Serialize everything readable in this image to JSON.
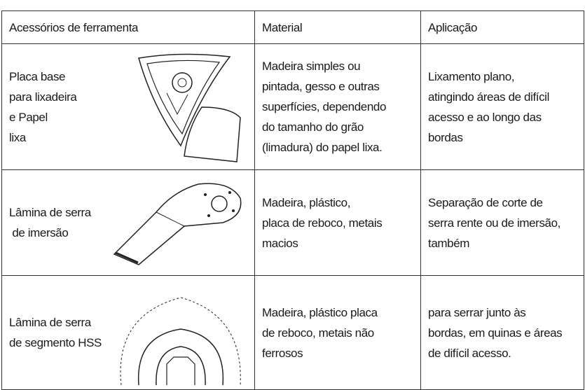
{
  "table": {
    "header": [
      "Acessórios de ferramenta",
      "Material",
      "Aplicação"
    ],
    "rows": [
      [
        [
          "Placa base",
          "para lixadeira",
          "e Papel",
          "lixa"
        ],
        [
          "Madeira simples ou",
          "pintada, gesso e outras",
          "superfícies, dependendo",
          "do tamanho do grão",
          "(limadura) do papel lixa."
        ],
        [
          "Lixamento plano,",
          "atingindo áreas de difícil",
          "acesso e ao longo das",
          "bordas"
        ]
      ],
      [
        [
          "Lâmina de serra",
          " de imersão"
        ],
        [
          "Madeira, plástico,",
          "placa de reboco, metais",
          "macios"
        ],
        [
          "Separação de corte de",
          "serra rente ou de imersão,",
          "também"
        ]
      ],
      [
        [
          "Lâmina de serra",
          "de segmento HSS"
        ],
        [
          "Madeira, plástico placa",
          "de reboco, metais não",
          "ferrosos"
        ],
        [
          "para serrar junto às",
          "bordas, em quinas e áreas",
          "de difícil acesso."
        ]
      ]
    ]
  }
}
